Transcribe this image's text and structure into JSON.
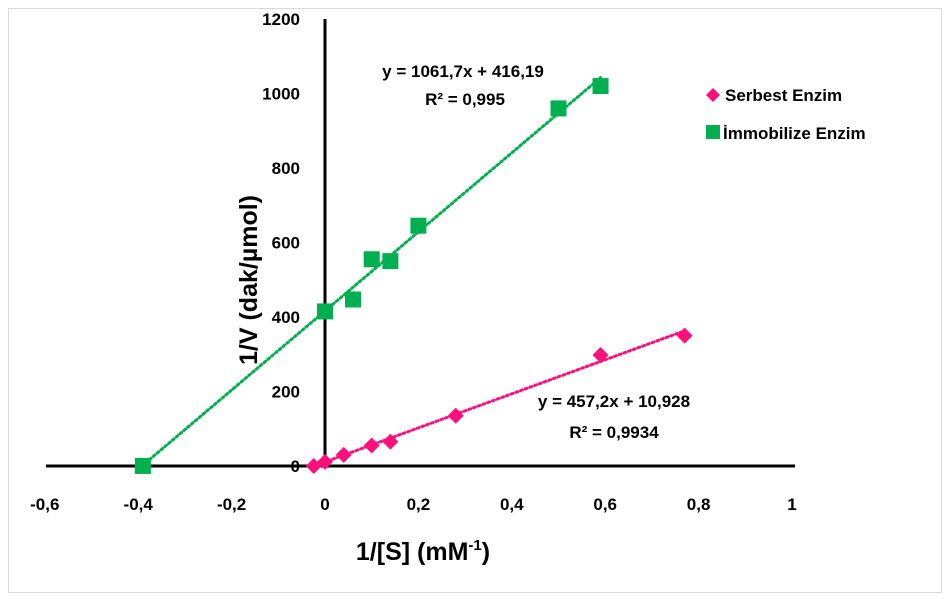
{
  "chart_data": {
    "type": "scatter",
    "xlabel": "1/[S] (mM",
    "xlabel_sup": "-1",
    "xlabel_close": ")",
    "ylabel": "1/V (dak/µmol)",
    "xlim": [
      -0.6,
      1
    ],
    "ylim": [
      0,
      1200
    ],
    "x_ticks": [
      "-0,6",
      "-0,4",
      "-0,2",
      "0",
      "0,2",
      "0,4",
      "0,6",
      "0,8",
      "1"
    ],
    "x_tick_values": [
      -0.6,
      -0.4,
      -0.2,
      0,
      0.2,
      0.4,
      0.6,
      0.8,
      1
    ],
    "y_ticks": [
      "0",
      "200",
      "400",
      "600",
      "800",
      "1000",
      "1200"
    ],
    "y_tick_values": [
      0,
      200,
      400,
      600,
      800,
      1000,
      1200
    ],
    "grid": false,
    "legend": "top-right",
    "series": [
      {
        "name": "Serbest Enzim",
        "color": "#ff0f7b",
        "marker": "diamond",
        "points": [
          [
            -0.024,
            0
          ],
          [
            0,
            11
          ],
          [
            0.04,
            30
          ],
          [
            0.1,
            55
          ],
          [
            0.14,
            65
          ],
          [
            0.28,
            135
          ],
          [
            0.59,
            298
          ],
          [
            0.77,
            350
          ]
        ],
        "trendline": {
          "slope": 457.2,
          "intercept": 10.928,
          "x_from": -0.024,
          "x_to": 0.77
        },
        "equation": "y = 457,2x + 10,928",
        "r2": "R² = 0,9934"
      },
      {
        "name": "İmmobilize Enzim",
        "color": "#00b050",
        "marker": "square",
        "points": [
          [
            -0.39,
            0
          ],
          [
            0,
            415
          ],
          [
            0.06,
            447
          ],
          [
            0.1,
            555
          ],
          [
            0.14,
            550
          ],
          [
            0.2,
            645
          ],
          [
            0.5,
            960
          ],
          [
            0.59,
            1020
          ]
        ],
        "trendline": {
          "slope": 1061.7,
          "intercept": 416.19,
          "x_from": -0.392,
          "x_to": 0.59
        },
        "equation": "y = 1061,7x + 416,19",
        "r2": "R² = 0,995"
      }
    ]
  }
}
